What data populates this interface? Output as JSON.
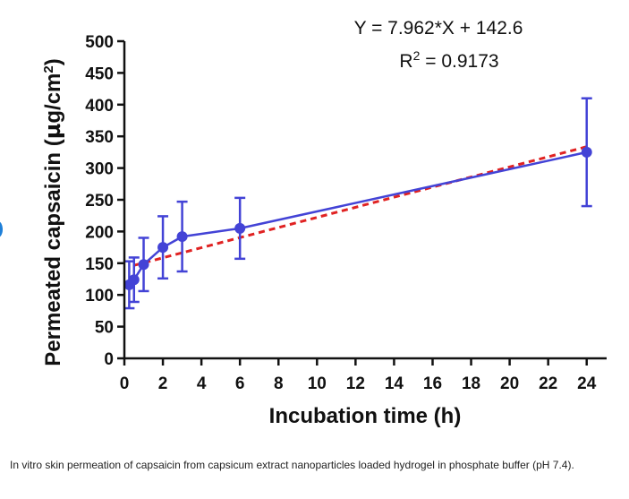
{
  "chart_data": {
    "type": "line",
    "xlabel": "Incubation time (h)",
    "ylabel": "Permeated capsaicin (µg/cm²)",
    "ylabel_parts": [
      "Permeated capsaicin (",
      "µ",
      "g/cm",
      "2",
      ")"
    ],
    "xlim": [
      0,
      25
    ],
    "ylim": [
      0,
      500
    ],
    "xticks": [
      0,
      2,
      4,
      6,
      8,
      10,
      12,
      14,
      16,
      18,
      20,
      22,
      24
    ],
    "yticks": [
      0,
      50,
      100,
      150,
      200,
      250,
      300,
      350,
      400,
      450,
      500
    ],
    "series": [
      {
        "name": "Permeated capsaicin",
        "color": "#4343d6",
        "x": [
          0.25,
          0.5,
          1,
          2,
          3,
          6,
          24
        ],
        "y": [
          116,
          124,
          148,
          175,
          192,
          205,
          325
        ],
        "err": [
          37,
          35,
          42,
          49,
          55,
          48,
          85
        ]
      }
    ],
    "fit": {
      "color": "#e02222",
      "slope": 7.962,
      "intercept": 142.6,
      "x_range": [
        0.5,
        24
      ],
      "equation": "Y = 7.962*X + 142.6",
      "r2_prefix": "R",
      "r2_power": "2",
      "r2_suffix": " = 0.9173"
    }
  },
  "caption": "In vitro skin permeation of capsaicin from capsicum extract nanoparticles loaded hydrogel in phosphate buffer (pH 7.4)."
}
